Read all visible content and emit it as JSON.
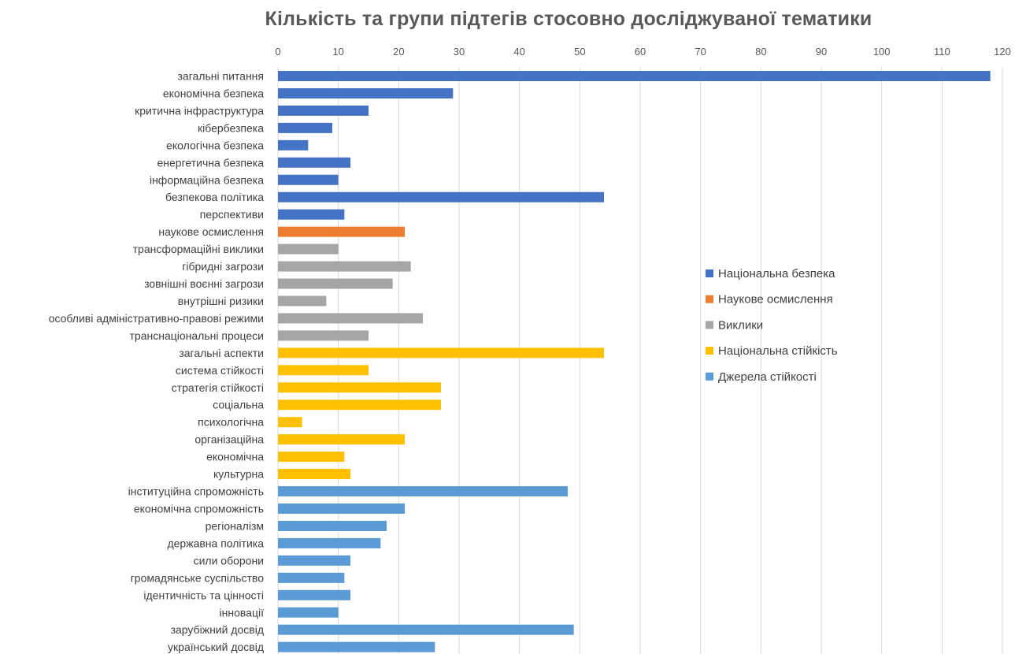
{
  "chart_data": {
    "type": "bar",
    "orientation": "horizontal",
    "title": "Кількість та групи підтегів стосовно досліджуваної тематики",
    "xlim": [
      0,
      120
    ],
    "x_ticks": [
      0,
      10,
      20,
      30,
      40,
      50,
      60,
      70,
      80,
      90,
      100,
      110,
      120
    ],
    "grid": true,
    "legend_position": "right",
    "series": [
      {
        "name": "Національна безпека",
        "color": "#4472C4"
      },
      {
        "name": "Наукове осмислення",
        "color": "#ED7D31"
      },
      {
        "name": "Виклики",
        "color": "#A5A5A5"
      },
      {
        "name": "Національна стійкість",
        "color": "#FFC000"
      },
      {
        "name": "Джерела стійкості",
        "color": "#5B9BD5"
      }
    ],
    "bars": [
      {
        "label": "загальні питання",
        "value": 118,
        "series": 0
      },
      {
        "label": "економічна безпека",
        "value": 29,
        "series": 0
      },
      {
        "label": "критична інфраструктура",
        "value": 15,
        "series": 0
      },
      {
        "label": "кібербезпека",
        "value": 9,
        "series": 0
      },
      {
        "label": "екологічна безпека",
        "value": 5,
        "series": 0
      },
      {
        "label": "енергетична безпека",
        "value": 12,
        "series": 0
      },
      {
        "label": "інформаційна безпека",
        "value": 10,
        "series": 0
      },
      {
        "label": "безпекова політика",
        "value": 54,
        "series": 0
      },
      {
        "label": "перспективи",
        "value": 11,
        "series": 0
      },
      {
        "label": "наукове осмислення",
        "value": 21,
        "series": 1
      },
      {
        "label": "трансформаційні виклики",
        "value": 10,
        "series": 2
      },
      {
        "label": "гібридні загрози",
        "value": 22,
        "series": 2
      },
      {
        "label": "зовнішні воєнні загрози",
        "value": 19,
        "series": 2
      },
      {
        "label": "внутрішні ризики",
        "value": 8,
        "series": 2
      },
      {
        "label": "особливі адміністративно-правові режими",
        "value": 24,
        "series": 2
      },
      {
        "label": "транснаціональні процеси",
        "value": 15,
        "series": 2
      },
      {
        "label": "загальні аспекти",
        "value": 54,
        "series": 3
      },
      {
        "label": "система стійкості",
        "value": 15,
        "series": 3
      },
      {
        "label": "стратегія стійкості",
        "value": 27,
        "series": 3
      },
      {
        "label": "соціальна",
        "value": 27,
        "series": 3
      },
      {
        "label": "психологічна",
        "value": 4,
        "series": 3
      },
      {
        "label": "організаційна",
        "value": 21,
        "series": 3
      },
      {
        "label": "економічна",
        "value": 11,
        "series": 3
      },
      {
        "label": "культурна",
        "value": 12,
        "series": 3
      },
      {
        "label": "інституційна спроможність",
        "value": 48,
        "series": 4
      },
      {
        "label": "економічна спроможність",
        "value": 21,
        "series": 4
      },
      {
        "label": "регіоналізм",
        "value": 18,
        "series": 4
      },
      {
        "label": "державна політика",
        "value": 17,
        "series": 4
      },
      {
        "label": "сили оборони",
        "value": 12,
        "series": 4
      },
      {
        "label": "громадянське суспільство",
        "value": 11,
        "series": 4
      },
      {
        "label": "ідентичність та цінності",
        "value": 12,
        "series": 4
      },
      {
        "label": "інновації",
        "value": 10,
        "series": 4
      },
      {
        "label": "зарубіжний досвід",
        "value": 49,
        "series": 4
      },
      {
        "label": "український досвід",
        "value": 26,
        "series": 4
      }
    ]
  }
}
